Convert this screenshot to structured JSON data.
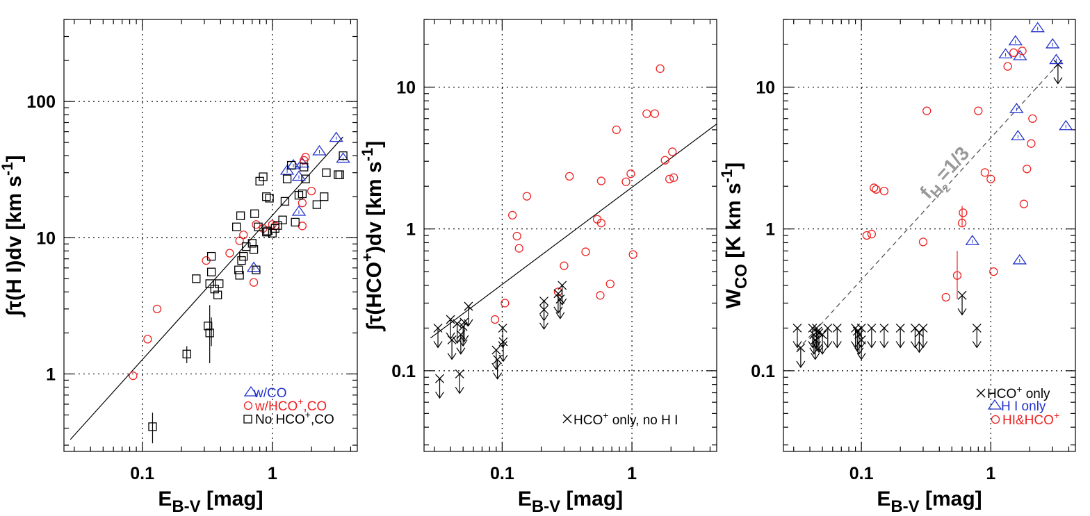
{
  "chart_data": [
    {
      "type": "scatter",
      "panel": "left",
      "xlabel": "E_{B-V} [mag]",
      "ylabel": "∫τ(H I)dv [km s^{-1}]",
      "xscale": "log",
      "yscale": "log",
      "xlim": [
        0.025,
        4.5
      ],
      "ylim": [
        0.27,
        400
      ],
      "xticks": [
        0.1,
        1
      ],
      "xtick_labels": [
        "0.1",
        "1"
      ],
      "yticks": [
        1,
        10,
        100
      ],
      "ytick_labels": [
        "1",
        "10",
        "100"
      ],
      "grid": true,
      "legend_position": "bottom-right",
      "fit_line": {
        "x": [
          0.028,
          3.5
        ],
        "y": [
          0.33,
          55
        ]
      },
      "series": [
        {
          "name": "w/CO",
          "marker": "triangle",
          "color": "#2233cc",
          "x": [
            3.1,
            2.3,
            1.3,
            1.45,
            1.6,
            1.7,
            1.6,
            3.5,
            0.72
          ],
          "y": [
            54,
            43,
            31,
            34,
            28,
            35,
            15.5,
            38,
            6
          ]
        },
        {
          "name": "w/HCO⁺,CO",
          "marker": "circle",
          "color": "#ee2222",
          "x": [
            0.085,
            0.11,
            0.13,
            0.31,
            0.47,
            0.56,
            0.6,
            0.72,
            0.75,
            0.85,
            1.0,
            1.05,
            1.7,
            1.75,
            1.8,
            2.0,
            1.7
          ],
          "y": [
            0.97,
            1.8,
            3.0,
            6.8,
            7.7,
            9.5,
            10.5,
            4.7,
            12.5,
            11.7,
            12.5,
            12.2,
            12.2,
            37,
            39,
            22,
            18
          ]
        },
        {
          "name": "No HCO⁺,CO",
          "marker": "square",
          "color": "#000000",
          "x": [
            0.12,
            0.22,
            0.26,
            0.32,
            0.33,
            0.33,
            0.34,
            0.34,
            0.36,
            0.38,
            0.39,
            0.53,
            0.55,
            0.56,
            0.57,
            0.58,
            0.6,
            0.63,
            0.7,
            0.72,
            0.73,
            0.75,
            0.78,
            0.8,
            0.85,
            0.9,
            0.92,
            0.95,
            1.0,
            1.05,
            1.2,
            1.25,
            1.3,
            1.4,
            1.5,
            1.6,
            1.7,
            1.75,
            1.8,
            2.2,
            2.5,
            2.6,
            3.2,
            3.3,
            3.5,
            1.1,
            0.9
          ],
          "y": [
            0.41,
            1.4,
            5.0,
            2.25,
            4.6,
            2.0,
            7.3,
            5.6,
            4.2,
            3.8,
            4.6,
            12,
            5.8,
            5.3,
            14.5,
            6.8,
            7.3,
            8.6,
            9.1,
            8.2,
            15.0,
            5.8,
            12.0,
            26,
            28,
            20,
            11.2,
            19.5,
            10.8,
            11.7,
            13.5,
            18.5,
            27,
            34,
            13.0,
            20.5,
            21,
            33,
            27,
            17.5,
            20,
            30,
            29,
            29,
            40,
            12.3,
            11.0
          ]
        }
      ]
    },
    {
      "type": "scatter",
      "panel": "middle",
      "xlabel": "E_{B-V} [mag]",
      "ylabel": "∫τ(HCO⁺)dv [km s^{-1}]",
      "xscale": "log",
      "yscale": "log",
      "xlim": [
        0.025,
        4.5
      ],
      "ylim": [
        0.027,
        30
      ],
      "xticks": [
        0.1,
        1
      ],
      "xtick_labels": [
        "0.1",
        "1"
      ],
      "yticks": [
        0.1,
        1,
        10
      ],
      "ytick_labels": [
        "0.1",
        "1",
        "10"
      ],
      "grid": true,
      "legend_position": "bottom-right",
      "fit_line": {
        "x": [
          0.028,
          4.5
        ],
        "y": [
          0.17,
          5.5
        ]
      },
      "series": [
        {
          "name": "HCO⁺ detections",
          "marker": "circle",
          "color": "#ee2222",
          "x": [
            0.088,
            0.105,
            0.12,
            0.13,
            0.135,
            0.155,
            0.27,
            0.3,
            0.33,
            0.44,
            0.54,
            0.57,
            0.58,
            0.58,
            0.68,
            0.76,
            0.9,
            0.98,
            1.02,
            1.3,
            1.5,
            1.65,
            1.8,
            1.95,
            2.05,
            2.1
          ],
          "y": [
            0.23,
            0.3,
            1.25,
            0.89,
            0.73,
            1.7,
            0.36,
            0.55,
            2.35,
            0.69,
            1.17,
            0.34,
            1.1,
            2.18,
            0.41,
            5.0,
            2.15,
            2.45,
            0.66,
            6.5,
            6.5,
            13.5,
            3.05,
            2.25,
            3.5,
            2.3
          ]
        },
        {
          "name": "HCO⁺ only, no H I",
          "marker": "x-upper-limit",
          "color": "#000000",
          "x": [
            0.032,
            0.033,
            0.04,
            0.041,
            0.045,
            0.047,
            0.048,
            0.05,
            0.051,
            0.055,
            0.09,
            0.092,
            0.101,
            0.102,
            0.21,
            0.21,
            0.27,
            0.28,
            0.29
          ],
          "y": [
            0.2,
            0.088,
            0.23,
            0.165,
            0.215,
            0.095,
            0.18,
            0.205,
            0.22,
            0.285,
            0.14,
            0.12,
            0.2,
            0.16,
            0.31,
            0.27,
            0.35,
            0.32,
            0.4
          ]
        }
      ],
      "legend_text": "HCO⁺ only, no H I"
    },
    {
      "type": "scatter",
      "panel": "right",
      "xlabel": "E_{B-V} [mag]",
      "ylabel": "W_{CO} [K km s^{-1}]",
      "xscale": "log",
      "yscale": "log",
      "xlim": [
        0.025,
        4.5
      ],
      "ylim": [
        0.027,
        30
      ],
      "xticks": [
        0.1,
        1
      ],
      "xtick_labels": [
        "0.1",
        "1"
      ],
      "yticks": [
        0.1,
        1,
        10
      ],
      "ytick_labels": [
        "0.1",
        "1",
        "10"
      ],
      "grid": true,
      "legend_position": "bottom-right",
      "annotation": {
        "text": "f_{H2}=1/3",
        "x0": 0.032,
        "y0": 0.14,
        "x1": 3.3,
        "y1": 14.5
      },
      "series": [
        {
          "name": "HCO⁺ only",
          "marker": "x-upper-limit",
          "color": "#000000",
          "x": [
            0.032,
            0.034,
            0.042,
            0.043,
            0.044,
            0.045,
            0.046,
            0.047,
            0.05,
            0.055,
            0.065,
            0.09,
            0.093,
            0.096,
            0.1,
            0.1,
            0.12,
            0.15,
            0.2,
            0.26,
            0.28,
            0.3,
            0.6,
            0.78,
            3.3
          ],
          "y": [
            0.2,
            0.145,
            0.2,
            0.18,
            0.165,
            0.2,
            0.19,
            0.185,
            0.18,
            0.2,
            0.2,
            0.2,
            0.19,
            0.18,
            0.2,
            0.165,
            0.2,
            0.2,
            0.2,
            0.2,
            0.185,
            0.2,
            0.34,
            0.2,
            14.5
          ]
        },
        {
          "name": "H I only",
          "marker": "triangle",
          "color": "#2233cc",
          "x": [
            1.3,
            1.55,
            1.58,
            1.62,
            1.67,
            1.68,
            2.3,
            3.0,
            3.2,
            3.8,
            0.72
          ],
          "y": [
            17,
            21,
            7,
            4.5,
            0.6,
            16.5,
            26,
            20,
            15.5,
            5.3,
            0.82
          ]
        },
        {
          "name": "HI&HCO⁺",
          "marker": "circle",
          "color": "#ee2222",
          "x": [
            0.11,
            0.12,
            0.125,
            0.13,
            0.15,
            0.3,
            0.32,
            0.45,
            0.55,
            0.6,
            0.61,
            0.8,
            0.9,
            1.0,
            1.05,
            1.35,
            1.5,
            1.75,
            1.8,
            1.9,
            2.05,
            2.1
          ],
          "y": [
            0.9,
            0.92,
            1.95,
            1.9,
            1.85,
            0.81,
            6.8,
            0.33,
            0.47,
            1.1,
            1.3,
            6.8,
            2.5,
            2.25,
            0.5,
            14,
            17.5,
            18,
            1.5,
            2.65,
            4.0,
            6.0
          ]
        }
      ]
    }
  ],
  "text": {
    "left_legend": [
      "w/CO",
      "w/HCO⁺,CO",
      "No HCO⁺,CO"
    ],
    "middle_legend": "HCO⁺ only, no H I",
    "right_legend": [
      "HCO⁺ only",
      "H I only",
      "HI&HCO⁺"
    ],
    "annotation": "fH2=1/3"
  },
  "colors": {
    "blue": "#2233cc",
    "red": "#ee2222",
    "black": "#000000",
    "annotation": "#999999"
  }
}
